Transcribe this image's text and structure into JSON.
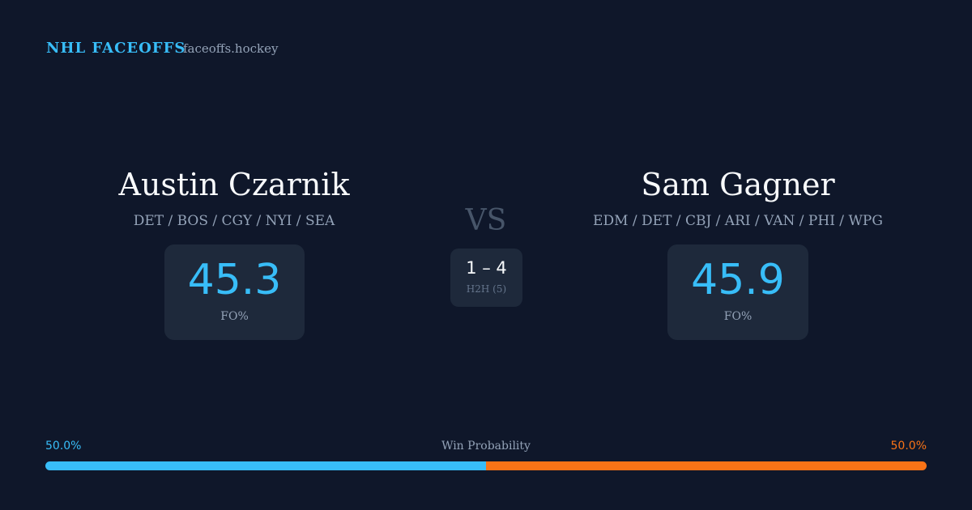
{
  "header": {
    "brand": "NHL FACEOFFS",
    "site": "faceoffs.hockey"
  },
  "players": [
    {
      "name": "Austin Czarnik",
      "teams": "DET / BOS / CGY / NYI / SEA",
      "fo": "45.3",
      "fo_label": "FO%"
    },
    {
      "name": "Sam Gagner",
      "teams": "EDM / DET / CBJ / ARI / VAN / PHI / WPG",
      "fo": "45.9",
      "fo_label": "FO%"
    }
  ],
  "versus": "VS",
  "h2h": {
    "score": "1 – 4",
    "label": "H2H (5)"
  },
  "win_probability": {
    "title": "Win Probability",
    "left": {
      "value": 50.0,
      "label": "50.0%",
      "color": "#38bdf8"
    },
    "right": {
      "value": 50.0,
      "label": "50.0%",
      "color": "#f97316"
    }
  }
}
